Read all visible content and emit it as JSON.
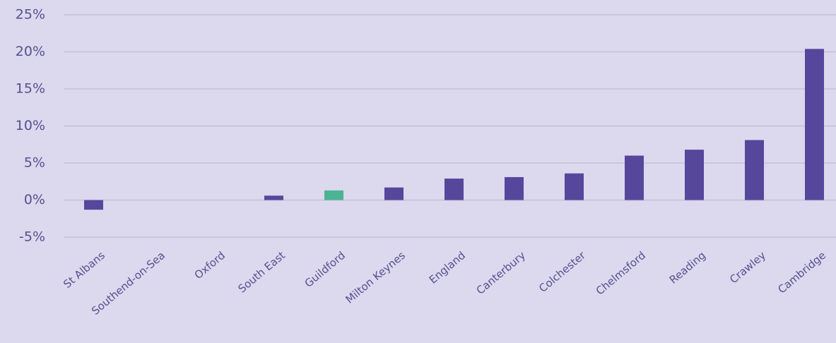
{
  "chart_data": {
    "type": "bar",
    "categories": [
      "St Albans",
      "Southend-on-Sea",
      "Oxford",
      "South East",
      "Guildford",
      "Milton Keynes",
      "England",
      "Canterbury",
      "Colchester",
      "Chelmsford",
      "Reading",
      "Crawley",
      "Cambridge"
    ],
    "values": [
      -1.3,
      0,
      0,
      0.6,
      1.3,
      1.7,
      2.9,
      3.1,
      3.6,
      6.0,
      6.8,
      8.1,
      20.4
    ],
    "colors": [
      "#56479c",
      "#56479c",
      "#56479c",
      "#56479c",
      "#4cb393",
      "#56479c",
      "#56479c",
      "#56479c",
      "#56479c",
      "#56479c",
      "#56479c",
      "#56479c",
      "#56479c"
    ],
    "ylim": [
      -5,
      25
    ],
    "yticks": [
      {
        "value": -5,
        "label": "-5%"
      },
      {
        "value": 0,
        "label": "0%"
      },
      {
        "value": 5,
        "label": "5%"
      },
      {
        "value": 10,
        "label": "10%"
      },
      {
        "value": 15,
        "label": "15%"
      },
      {
        "value": 20,
        "label": "20%"
      },
      {
        "value": 25,
        "label": "25%"
      }
    ],
    "grid": true
  }
}
